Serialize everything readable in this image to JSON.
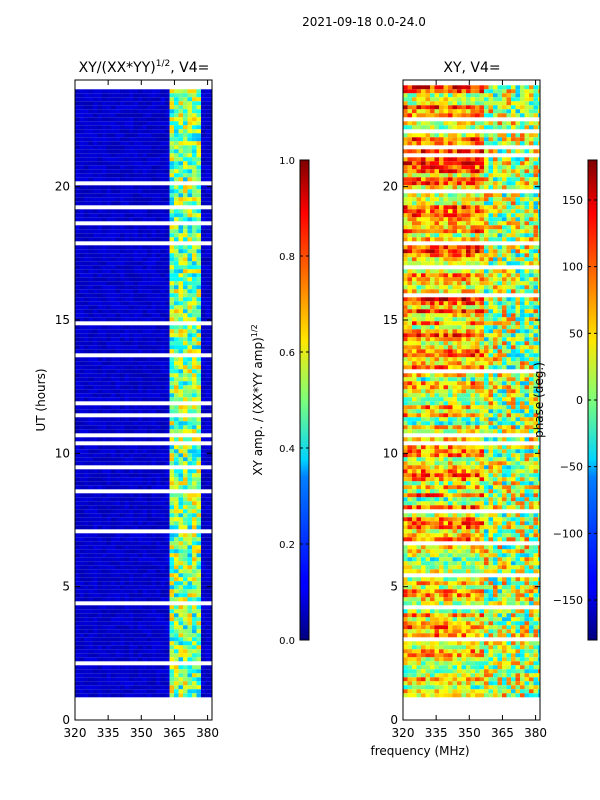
{
  "figure": {
    "suptitle": "2021-09-18 0.0-24.0",
    "xlabel": "frequency (MHz)",
    "ylabel": "UT (hours)"
  },
  "chart_data": [
    {
      "type": "heatmap",
      "title_main": "XY/(XX*YY)",
      "title_exp": "1/2",
      "title_tail": ", V4=",
      "xlim": [
        320,
        382
      ],
      "ylim": [
        0,
        24
      ],
      "xticks": [
        320,
        335,
        350,
        365,
        380
      ],
      "yticks": [
        0,
        5,
        10,
        15,
        20
      ],
      "colormap": "jet",
      "data_range_hours": [
        0.9,
        23.8
      ],
      "signal_band_mhz": [
        362,
        376
      ],
      "typical_values": {
        "background": 0.05,
        "band": 0.5
      }
    },
    {
      "type": "heatmap",
      "title": "XY, V4=",
      "xlim": [
        320,
        382
      ],
      "ylim": [
        0,
        24
      ],
      "xticks": [
        320,
        335,
        350,
        365,
        380
      ],
      "yticks": [
        0,
        5,
        10,
        15,
        20
      ],
      "colormap": "jet",
      "data_range_hours": [
        0.9,
        23.8
      ],
      "vmin": -180,
      "vmax": 180
    }
  ],
  "colorbars": [
    {
      "label_main": "XY amp. / (XX*YY amp)",
      "label_exp": "1/2",
      "min": 0.0,
      "max": 1.0,
      "ticks": [
        "0.0",
        "0.2",
        "0.4",
        "0.6",
        "0.8",
        "1.0"
      ]
    },
    {
      "label": "phase (deg.)",
      "min": -180,
      "max": 180,
      "ticks": [
        "-150",
        "-100",
        "-50",
        "0",
        "50",
        "100",
        "150"
      ]
    }
  ]
}
